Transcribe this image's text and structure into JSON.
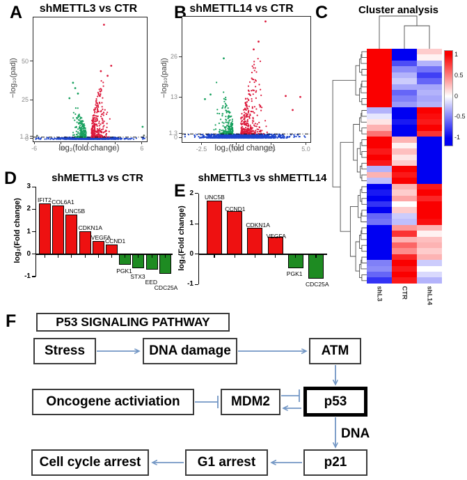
{
  "colors": {
    "up": "#dc1a3c",
    "down": "#17a05e",
    "ns": "#1c44cc",
    "dark": "#5f6f63",
    "bar_up": "#ee1111",
    "bar_down": "#1e8b22",
    "arrow": "#7296c4",
    "heat_pos": "#fa0000",
    "heat_neg": "#0202f2"
  },
  "figure": {
    "panels": {
      "a": {
        "letter": "A",
        "title": "shMETTL3 vs CTR",
        "xlabel": "log₂(fold change)",
        "ylabel": "−log₁₀(padj)"
      },
      "b": {
        "letter": "B",
        "title": "shMETTL14 vs CTR",
        "xlabel": "log₂(fold change)",
        "ylabel": "−log₁₀(padj)"
      },
      "c": {
        "letter": "C",
        "title": "Cluster analysis"
      },
      "d": {
        "letter": "D",
        "title": "shMETTL3 vs CTR",
        "ylabel": "log₂(Fold change)"
      },
      "e": {
        "letter": "E",
        "title": "shMETTL3 vs shMETTL14",
        "ylabel": "log₂(Fold change)"
      },
      "f": {
        "letter": "F",
        "title": "P53 SIGNALING PATHWAY",
        "dna_label": "DNA"
      }
    }
  },
  "chart_data": {
    "volcano_a": {
      "type": "scatter",
      "subtype": "volcano",
      "title": "shMETTL3 vs CTR",
      "xlabel": "log₂(fold change)",
      "ylabel": "−log₁₀(padj)",
      "xlim": [
        -6.2,
        6.6
      ],
      "ylim": [
        0,
        78
      ],
      "threshold": 1.3,
      "xticks": [
        {
          "t": "-6",
          "v": -6
        },
        {
          "t": "-3",
          "v": -3
        },
        {
          "t": "0",
          "v": 0
        },
        {
          "t": "3",
          "v": 3
        },
        {
          "t": "6",
          "v": 6
        }
      ],
      "yticks": [
        {
          "t": "50",
          "v": 50
        },
        {
          "t": "25",
          "v": 25
        },
        {
          "t": "1.3",
          "v": 1.3
        },
        {
          "t": "0",
          "v": 0
        }
      ],
      "groups": [
        {
          "name": "not-significant",
          "c": "ns",
          "n": 1000,
          "side": 0,
          "x_mu": 0,
          "x_sd": 1.5,
          "x_min": -4.6,
          "x_max": 4.6,
          "tail": 0.1,
          "tail_min": -5.9,
          "tail_max": 6.3,
          "y_min": 0,
          "y_max": 1.25,
          "y_pow": 1.7
        },
        {
          "name": "down-regulated",
          "c": "down",
          "n": 235,
          "side": -1,
          "x_base": 0.3,
          "x_spread": 0.55,
          "x_min": -3.6,
          "x_max": -0.3,
          "y_min": 1.35,
          "y_max": 23,
          "y_pow": 2.6
        },
        {
          "name": "up-regulated",
          "c": "up",
          "n": 340,
          "side": 1,
          "x_base": 0.3,
          "x_spread": 0.75,
          "x_min": 0.3,
          "x_max": 4.35,
          "y_min": 1.35,
          "y_max": 40,
          "y_pow": 2.8
        }
      ],
      "outliers": [
        {
          "x": 1.7,
          "y": 74,
          "c": "up"
        },
        {
          "x": 2.5,
          "y": 47.5,
          "c": "up"
        },
        {
          "x": 1.35,
          "y": 44,
          "c": "up"
        },
        {
          "x": 2.1,
          "y": 41,
          "c": "up"
        },
        {
          "x": -1.75,
          "y": 36.5,
          "c": "down"
        },
        {
          "x": -1.5,
          "y": 33,
          "c": "down"
        },
        {
          "x": -1.2,
          "y": 29.5,
          "c": "down"
        },
        {
          "x": -2.15,
          "y": 26.5,
          "c": "down"
        },
        {
          "x": 6.0,
          "y": 8,
          "c": "down"
        },
        {
          "x": -5.75,
          "y": 2.2,
          "c": "dark"
        },
        {
          "x": 6.15,
          "y": 2.4,
          "c": "dark"
        }
      ]
    },
    "volcano_b": {
      "type": "scatter",
      "subtype": "volcano",
      "title": "shMETTL14 vs CTR",
      "xlabel": "log₂(fold change)",
      "ylabel": "−log₁₀(padj)",
      "xlim": [
        -3.9,
        5.3
      ],
      "ylim": [
        0,
        39
      ],
      "threshold": 1.3,
      "xticks": [
        {
          "t": "-2.5",
          "v": -2.5
        },
        {
          "t": "0.0",
          "v": 0
        },
        {
          "t": "2.5",
          "v": 2.5
        },
        {
          "t": "5.0",
          "v": 5
        }
      ],
      "yticks": [
        {
          "t": "26",
          "v": 26
        },
        {
          "t": "13",
          "v": 13
        },
        {
          "t": "1.3",
          "v": 1.3
        },
        {
          "t": "0",
          "v": 0
        }
      ],
      "groups": [
        {
          "name": "not-significant",
          "c": "ns",
          "n": 1000,
          "side": 0,
          "x_mu": 0.4,
          "x_sd": 1.3,
          "x_min": -3.65,
          "x_max": 4.85,
          "tail": 0.08,
          "tail_min": -3.8,
          "tail_max": 4.9,
          "y_min": 0,
          "y_max": 1.25,
          "y_pow": 1.7
        },
        {
          "name": "down-regulated",
          "c": "down",
          "n": 215,
          "side": -1,
          "x_base": 0.3,
          "x_spread": 0.5,
          "x_min": -2.6,
          "x_max": -0.3,
          "y_min": 1.35,
          "y_max": 20,
          "y_pow": 2.6
        },
        {
          "name": "up-regulated",
          "c": "up",
          "n": 320,
          "side": 1,
          "x_base": 0.28,
          "x_spread": 0.72,
          "x_min": 0.28,
          "x_max": 4.6,
          "y_min": 1.35,
          "y_max": 27,
          "y_pow": 2.8
        }
      ],
      "outliers": [
        {
          "x": 2.05,
          "y": 37.5,
          "c": "up"
        },
        {
          "x": 1.55,
          "y": 31,
          "c": "up"
        },
        {
          "x": 1.2,
          "y": 28.5,
          "c": "up"
        },
        {
          "x": 3.5,
          "y": 13.5,
          "c": "up"
        },
        {
          "x": 4.55,
          "y": 13.2,
          "c": "up"
        },
        {
          "x": 4.0,
          "y": 9,
          "c": "up"
        },
        {
          "x": -0.95,
          "y": 25.6,
          "c": "down"
        },
        {
          "x": -1.9,
          "y": 14,
          "c": "down"
        },
        {
          "x": -2.3,
          "y": 12.5,
          "c": "down"
        }
      ]
    },
    "heatmap": {
      "type": "heatmap",
      "title": "Cluster analysis",
      "columns": [
        "shL3",
        "CTR",
        "shL14"
      ],
      "scale": {
        "min": -1,
        "max": 1
      },
      "legend_ticks": [
        {
          "t": "1",
          "v": 1
        },
        {
          "t": "0.5",
          "v": 0.5
        },
        {
          "t": "0",
          "v": 0
        },
        {
          "t": "-0.5",
          "v": -0.5
        },
        {
          "t": "-1",
          "v": -1
        }
      ],
      "rows": [
        [
          1,
          -1,
          0.2
        ],
        [
          1,
          -1,
          0.05
        ],
        [
          1,
          -0.7,
          -0.3
        ],
        [
          1,
          -0.45,
          -0.55
        ],
        [
          1,
          -0.3,
          -0.75
        ],
        [
          1,
          -0.2,
          -0.6
        ],
        [
          1,
          -0.35,
          -0.35
        ],
        [
          1,
          -0.6,
          -0.3
        ],
        [
          1,
          -0.5,
          -0.35
        ],
        [
          1,
          -0.4,
          -0.3
        ],
        [
          -0.3,
          -1,
          1
        ],
        [
          -0.1,
          -1,
          0.95
        ],
        [
          0.1,
          -0.9,
          0.9
        ],
        [
          0.3,
          -1,
          1
        ],
        [
          0.55,
          -1,
          0.8
        ],
        [
          1,
          0.3,
          -1
        ],
        [
          1,
          0.05,
          -1
        ],
        [
          0.9,
          0.25,
          -1
        ],
        [
          1,
          0.1,
          -1
        ],
        [
          0.9,
          0.2,
          -1
        ],
        [
          -0.3,
          1,
          -1
        ],
        [
          0.3,
          0.9,
          -1
        ],
        [
          -0.25,
          1,
          -1
        ],
        [
          -1,
          0.3,
          0.9
        ],
        [
          -0.9,
          0.2,
          1
        ],
        [
          -1,
          0.35,
          0.85
        ],
        [
          -0.8,
          0,
          1
        ],
        [
          -1,
          0.2,
          1
        ],
        [
          -0.6,
          -0.2,
          1
        ],
        [
          -0.55,
          -0.25,
          0.95
        ],
        [
          -1,
          0.4,
          0.3
        ],
        [
          -1,
          0.8,
          0.05
        ],
        [
          -1,
          0.3,
          0.25
        ],
        [
          -1,
          0.6,
          0.3
        ],
        [
          -1,
          0.45,
          0.2
        ],
        [
          -1,
          0.85,
          0.3
        ],
        [
          -0.5,
          1,
          -0.2
        ],
        [
          -0.45,
          0.9,
          0
        ],
        [
          -0.6,
          1,
          -0.15
        ],
        [
          -0.8,
          0.9,
          -0.3
        ]
      ]
    },
    "bars_d": {
      "type": "bar",
      "title": "shMETTL3 vs CTR",
      "ylabel": "log₂(Fold change)",
      "ylim": [
        -1,
        3
      ],
      "yticks": [
        {
          "t": "3",
          "v": 3
        },
        {
          "t": "2",
          "v": 2
        },
        {
          "t": "1",
          "v": 1
        },
        {
          "t": "0",
          "v": 0
        },
        {
          "t": "-1",
          "v": -1
        }
      ],
      "bars": [
        {
          "g": "IFIT2",
          "v": 2.27,
          "ldx": -2,
          "ldy": -10
        },
        {
          "g": "COL6A1",
          "v": 2.18,
          "ldx": -1,
          "ldy": -10
        },
        {
          "g": "UNC5B",
          "v": 1.77,
          "ldx": -1,
          "ldy": -10
        },
        {
          "g": "CDKN1A",
          "v": 1.03,
          "ldx": -1,
          "ldy": -10
        },
        {
          "g": "VEGFA",
          "v": 0.58,
          "ldx": -2,
          "ldy": -10
        },
        {
          "g": "CCND1",
          "v": 0.42,
          "ldx": -1,
          "ldy": -10
        },
        {
          "g": "PGK1",
          "v": -0.48,
          "ldx": -4,
          "ldy": 4
        },
        {
          "g": "STX3",
          "v": -0.62,
          "ldx": -3,
          "ldy": 7
        },
        {
          "g": "EED",
          "v": -0.68,
          "ldx": -1,
          "ldy": 13
        },
        {
          "g": "CDC25A",
          "v": -0.88,
          "ldx": -7,
          "ldy": 15
        }
      ]
    },
    "bars_e": {
      "type": "bar",
      "title": "shMETTL3 vs shMETTL14",
      "ylabel": "log₂(Fold change)",
      "ylim": [
        -1,
        2
      ],
      "yticks": [
        {
          "t": "2",
          "v": 2
        },
        {
          "t": "1",
          "v": 1
        },
        {
          "t": "0",
          "v": 0
        },
        {
          "t": "-1",
          "v": -1
        }
      ],
      "bars": [
        {
          "g": "UNC5B",
          "v": 1.77,
          "ldx": -3,
          "ldy": -10
        },
        {
          "g": "CCND1",
          "v": 1.42,
          "ldx": -3,
          "ldy": -8
        },
        {
          "g": "CDKN1A",
          "v": 0.86,
          "ldx": -2,
          "ldy": -9
        },
        {
          "g": "VEGFA",
          "v": 0.58,
          "ldx": -2,
          "ldy": -6
        },
        {
          "g": "PGK1",
          "v": -0.46,
          "ldx": -2,
          "ldy": 3
        },
        {
          "g": "CDC25A",
          "v": -0.82,
          "ldx": -4,
          "ldy": 3
        }
      ]
    },
    "pathway": {
      "type": "diagram",
      "title": "P53 SIGNALING PATHWAY",
      "nodes": [
        {
          "id": "pathway-title",
          "label": "P53 SIGNALING PATHWAY"
        },
        {
          "id": "stress",
          "label": "Stress"
        },
        {
          "id": "dna-damage",
          "label": "DNA damage"
        },
        {
          "id": "atm",
          "label": "ATM"
        },
        {
          "id": "oncogene",
          "label": "Oncogene activiation"
        },
        {
          "id": "mdm2",
          "label": "MDM2"
        },
        {
          "id": "p53",
          "label": "p53"
        },
        {
          "id": "cell-cycle-arrest",
          "label": "Cell cycle arrest"
        },
        {
          "id": "g1-arrest",
          "label": "G1 arrest"
        },
        {
          "id": "p21",
          "label": "p21"
        }
      ],
      "edges": [
        {
          "from": "stress",
          "to": "dna-damage",
          "type": "activates"
        },
        {
          "from": "dna-damage",
          "to": "atm",
          "type": "activates"
        },
        {
          "from": "atm",
          "to": "p53",
          "type": "activates"
        },
        {
          "from": "oncogene",
          "to": "mdm2",
          "type": "inhibits"
        },
        {
          "from": "mdm2",
          "to": "p53",
          "type": "inhibits"
        },
        {
          "from": "p53",
          "to": "mdm2",
          "type": "activates"
        },
        {
          "from": "p53",
          "to": "p21",
          "type": "activates",
          "label": "DNA"
        },
        {
          "from": "p21",
          "to": "g1-arrest",
          "type": "activates"
        },
        {
          "from": "g1-arrest",
          "to": "cell-cycle-arrest",
          "type": "activates"
        }
      ]
    }
  }
}
